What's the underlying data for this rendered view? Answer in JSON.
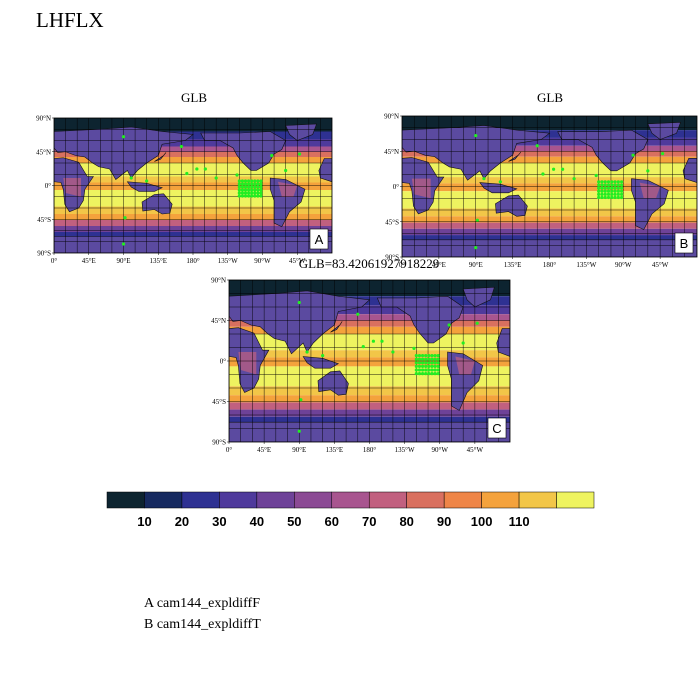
{
  "title": "LHFLX",
  "panels": [
    {
      "id": "A",
      "title": "GLB",
      "letter": "A"
    },
    {
      "id": "B",
      "title": "GLB",
      "letter": "B"
    },
    {
      "id": "C",
      "title": "GLB=83.42061927918229",
      "letter": "C"
    }
  ],
  "lat_labels": [
    "90°N",
    "45°N",
    "0°",
    "45°S",
    "90°S"
  ],
  "lon_labels": [
    "0°",
    "45°E",
    "90°E",
    "135°E",
    "180°",
    "135°W",
    "90°W",
    "45°W"
  ],
  "colorbar": {
    "colors": [
      "#0d2430",
      "#162a60",
      "#2e3192",
      "#4f3a9c",
      "#6e4298",
      "#8b4a94",
      "#a8558f",
      "#c1607f",
      "#d9705f",
      "#ee8547",
      "#f4a23c",
      "#f2c648",
      "#eef360"
    ],
    "labels": [
      "10",
      "20",
      "30",
      "40",
      "50",
      "60",
      "70",
      "80",
      "90",
      "100",
      "110"
    ]
  },
  "legend": [
    "A  cam144_expldiffF",
    "B  cam144_expldiffT"
  ],
  "palette": {
    "ocean_warm": "#eef360",
    "ocean_mid": "#f4a23c",
    "ocean_cool": "#a8558f",
    "polar": "#2e3192",
    "deep": "#0d2430",
    "land": "#5b4aa0",
    "stipple": "#22ee22"
  }
}
